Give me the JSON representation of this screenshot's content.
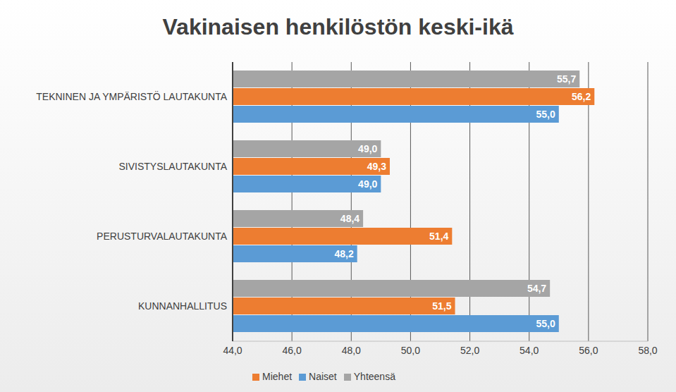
{
  "chart_data": {
    "type": "bar",
    "title": "Vakinaisen henkilöstön keski-ikä",
    "orientation": "horizontal",
    "categories": [
      "TEKNINEN JA YMPÄRISTÖ LAUTAKUNTA",
      "SIVISTYSLAUTAKUNTA",
      "PERUSTURVALAUTAKUNTA",
      "KUNNANHALLITUS"
    ],
    "series": [
      {
        "name": "Yhteensä",
        "color": "#a5a5a5",
        "values": [
          55.7,
          49.0,
          48.4,
          54.7
        ],
        "value_labels": [
          "55,7",
          "49,0",
          "48,4",
          "54,7"
        ]
      },
      {
        "name": "Miehet",
        "color": "#ed7d31",
        "values": [
          56.2,
          49.3,
          51.4,
          51.5
        ],
        "value_labels": [
          "56,2",
          "49,3",
          "51,4",
          "51,5"
        ]
      },
      {
        "name": "Naiset",
        "color": "#5b9bd5",
        "values": [
          55.0,
          49.0,
          48.2,
          55.0
        ],
        "value_labels": [
          "55,0",
          "49,0",
          "48,2",
          "55,0"
        ]
      }
    ],
    "xlim": [
      44,
      58
    ],
    "xticks": [
      {
        "value": 44,
        "label": "44,0"
      },
      {
        "value": 46,
        "label": "46,0"
      },
      {
        "value": 48,
        "label": "48,0"
      },
      {
        "value": 50,
        "label": "50,0"
      },
      {
        "value": 52,
        "label": "52,0"
      },
      {
        "value": 54,
        "label": "54,0"
      },
      {
        "value": 56,
        "label": "56,0"
      },
      {
        "value": 58,
        "label": "58,0"
      }
    ],
    "grid": true,
    "data_labels": true,
    "legend": "bottom"
  }
}
